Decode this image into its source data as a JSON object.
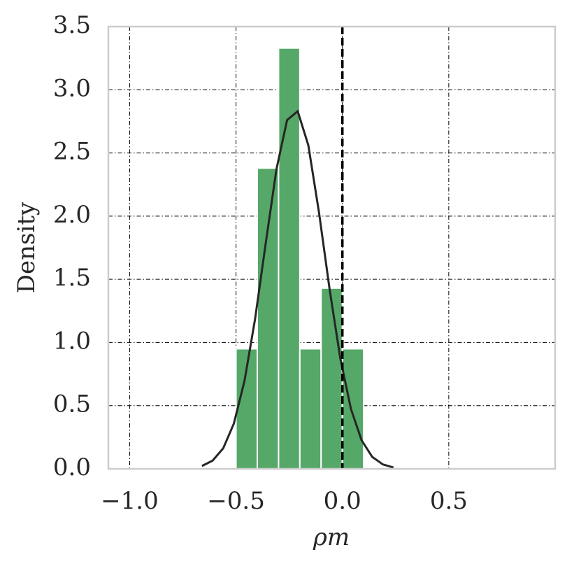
{
  "chart_data": {
    "type": "histogram",
    "xlabel": "ρm",
    "ylabel": "Density",
    "bins": [
      -0.5,
      -0.4,
      -0.3,
      -0.2,
      -0.1,
      0.0,
      0.1
    ],
    "values": [
      0.95,
      2.38,
      3.33,
      0.95,
      1.43,
      0.95
    ],
    "color": "#55a868",
    "curve": {
      "color": "#262626",
      "x": [
        -0.66,
        -0.61,
        -0.56,
        -0.51,
        -0.46,
        -0.41,
        -0.36,
        -0.31,
        -0.26,
        -0.21,
        -0.16,
        -0.11,
        -0.06,
        -0.01,
        0.04,
        0.09,
        0.14,
        0.19,
        0.24
      ],
      "values": [
        0.023,
        0.065,
        0.163,
        0.359,
        0.697,
        1.19,
        1.79,
        2.37,
        2.76,
        2.83,
        2.56,
        2.03,
        1.42,
        0.877,
        0.475,
        0.227,
        0.095,
        0.035,
        0.011
      ]
    },
    "vline": 0.0,
    "xlim": [
      -1.1,
      1.0
    ],
    "ylim": [
      0,
      3.5
    ],
    "xticks": [
      {
        "value": -1.0,
        "label": "−1.0"
      },
      {
        "value": -0.5,
        "label": "−0.5"
      },
      {
        "value": 0.0,
        "label": "0.0"
      },
      {
        "value": 0.5,
        "label": "0.5"
      }
    ],
    "yticks": [
      {
        "value": 0.0,
        "label": "0.0"
      },
      {
        "value": 0.5,
        "label": "0.5"
      },
      {
        "value": 1.0,
        "label": "1.0"
      },
      {
        "value": 1.5,
        "label": "1.5"
      },
      {
        "value": 2.0,
        "label": "2.0"
      },
      {
        "value": 2.5,
        "label": "2.5"
      },
      {
        "value": 3.0,
        "label": "3.0"
      },
      {
        "value": 3.5,
        "label": "3.5"
      }
    ],
    "grid": true
  }
}
